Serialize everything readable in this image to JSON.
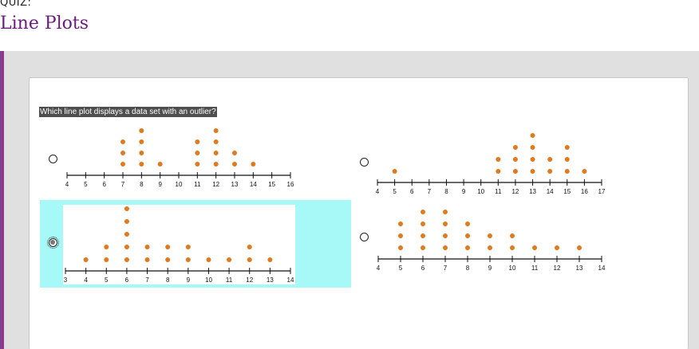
{
  "header": {
    "quiz_label": "QUIZ:",
    "title": "Line Plots"
  },
  "question": "Which line plot displays a data set with an outlier?",
  "options": [
    {
      "id": "A",
      "selected": false,
      "ticks": [
        4,
        5,
        6,
        7,
        8,
        9,
        10,
        11,
        12,
        13,
        14,
        15,
        16
      ],
      "points": [
        [
          7,
          3
        ],
        [
          8,
          4
        ],
        [
          9,
          1
        ],
        [
          11,
          3
        ],
        [
          12,
          4
        ],
        [
          13,
          2
        ],
        [
          14,
          1
        ]
      ]
    },
    {
      "id": "B",
      "selected": false,
      "ticks": [
        4,
        5,
        6,
        7,
        8,
        9,
        10,
        11,
        12,
        13,
        14,
        15,
        16,
        17
      ],
      "tick_labels": [
        "4",
        "5",
        "6",
        "7",
        "8",
        "9",
        "10",
        "11",
        "12",
        "13",
        "14",
        "15",
        "16",
        "17"
      ],
      "points": [
        [
          5,
          1
        ],
        [
          11,
          2
        ],
        [
          12,
          3
        ],
        [
          13,
          4
        ],
        [
          14,
          2
        ],
        [
          15,
          3
        ],
        [
          16,
          1
        ]
      ]
    },
    {
      "id": "C",
      "selected": true,
      "ticks": [
        3,
        4,
        5,
        6,
        7,
        8,
        9,
        10,
        11,
        12,
        13,
        14
      ],
      "points": [
        [
          4,
          1
        ],
        [
          5,
          2
        ],
        [
          6,
          5
        ],
        [
          7,
          2
        ],
        [
          8,
          2
        ],
        [
          9,
          2
        ],
        [
          10,
          1
        ],
        [
          11,
          1
        ],
        [
          12,
          2
        ],
        [
          13,
          1
        ]
      ]
    },
    {
      "id": "D",
      "selected": false,
      "ticks": [
        4,
        5,
        6,
        7,
        8,
        9,
        10,
        11,
        12,
        13,
        14
      ],
      "points": [
        [
          5,
          3
        ],
        [
          6,
          4
        ],
        [
          7,
          4
        ],
        [
          8,
          3
        ],
        [
          9,
          2
        ],
        [
          10,
          2
        ],
        [
          11,
          1
        ],
        [
          12,
          1
        ],
        [
          13,
          1
        ]
      ]
    }
  ],
  "colors": {
    "dot": "#e07a1f",
    "accent": "#8b3a8f",
    "highlight": "#a7f9f7",
    "title": "#6a1a7a"
  }
}
